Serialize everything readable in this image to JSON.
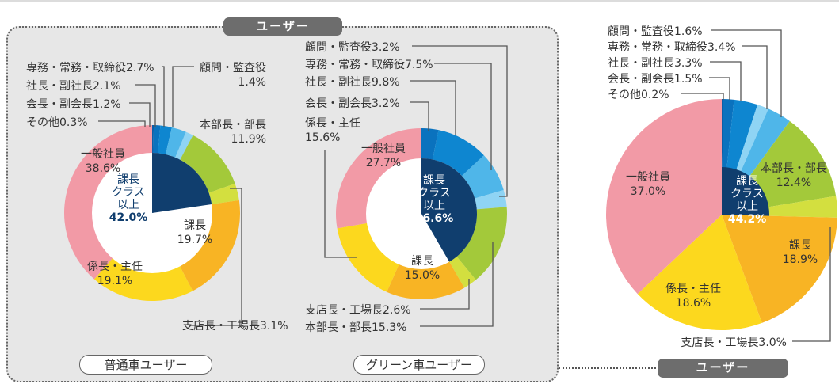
{
  "header": {
    "user_label": "ユーザー"
  },
  "footer": {
    "user_label": "ユーザー"
  },
  "colors": {
    "その他": "#0c5fa8",
    "会長・副会長": "#0a72be",
    "社長・副社長": "#0e86d0",
    "専務・常務・取締役": "#4fb6e9",
    "顧問・監査役": "#8fd4f4",
    "本部長・部長": "#a3c93a",
    "支店長・工場長": "#d3df3f",
    "課長": "#f8b424",
    "係長・主任": "#fcd81e",
    "一般社員": "#f29aa6",
    "center_fill": "#103e6e",
    "line": "#555555"
  },
  "chart_data": [
    {
      "type": "donut",
      "title": "普通車ユーザー",
      "categories": [
        "その他",
        "会長・副会長",
        "社長・副社長",
        "専務・常務・取締役",
        "顧問・監査役",
        "本部長・部長",
        "支店長・工場長",
        "課長",
        "係長・主任",
        "一般社員"
      ],
      "values": [
        0.3,
        1.2,
        2.1,
        2.7,
        1.4,
        11.9,
        3.1,
        19.7,
        19.1,
        38.6
      ],
      "center_label": [
        "課長",
        "クラス",
        "以上",
        "42.0%"
      ],
      "manager_share": 42.0,
      "labels": [
        {
          "lines": [
            "その他0.3%"
          ]
        },
        {
          "lines": [
            "会長・副会長1.2%"
          ]
        },
        {
          "lines": [
            "社長・副社長2.1%"
          ]
        },
        {
          "lines": [
            "専務・常務・取締役2.7%"
          ]
        },
        {
          "lines": [
            "顧問・監査役",
            "1.4%"
          ]
        },
        {
          "lines": [
            "本部長・部長",
            "11.9%"
          ]
        },
        {
          "lines": [
            "支店長・工場長3.1%"
          ]
        },
        {
          "lines": [
            "課長",
            "19.7%"
          ]
        },
        {
          "lines": [
            "係長・主任",
            "19.1%"
          ]
        },
        {
          "lines": [
            "一般社員",
            "38.6%"
          ]
        }
      ]
    },
    {
      "type": "donut",
      "title": "グリーン車ユーザー",
      "categories": [
        "会長・副会長",
        "社長・副社長",
        "専務・常務・取締役",
        "顧問・監査役",
        "本部長・部長",
        "支店長・工場長",
        "課長",
        "係長・主任",
        "一般社員"
      ],
      "values": [
        3.2,
        9.8,
        7.5,
        3.2,
        15.3,
        2.6,
        15.0,
        15.6,
        27.7
      ],
      "center_label": [
        "課長",
        "クラス",
        "以上",
        "56.6%"
      ],
      "manager_share": 56.6,
      "labels": [
        {
          "lines": [
            "会長・副会長3.2%"
          ]
        },
        {
          "lines": [
            "社長・副社長9.8%"
          ]
        },
        {
          "lines": [
            "専務・常務・取締役7.5%"
          ]
        },
        {
          "lines": [
            "顧問・監査役3.2%"
          ]
        },
        {
          "lines": [
            "本部長・部長15.3%"
          ]
        },
        {
          "lines": [
            "支店長・工場長2.6%"
          ]
        },
        {
          "lines": [
            "課長",
            "15.0%"
          ]
        },
        {
          "lines": [
            "係長・主任",
            "15.6%"
          ]
        },
        {
          "lines": [
            "一般社員",
            "27.7%"
          ]
        }
      ]
    },
    {
      "type": "donut",
      "title": "",
      "categories": [
        "その他",
        "会長・副会長",
        "社長・副社長",
        "顧問・監査役",
        "専務・常務・取締役",
        "本部長・部長",
        "支店長・工場長",
        "課長",
        "係長・主任",
        "一般社員"
      ],
      "values": [
        0.2,
        1.5,
        3.3,
        1.6,
        3.4,
        12.4,
        3.0,
        18.9,
        18.6,
        37.0
      ],
      "center_label": [
        "課長",
        "クラス",
        "以上",
        "44.2%"
      ],
      "manager_share": 44.2,
      "labels": [
        {
          "lines": [
            "その他0.2%"
          ]
        },
        {
          "lines": [
            "会長・副会長1.5%"
          ]
        },
        {
          "lines": [
            "社長・副社長3.3%"
          ]
        },
        {
          "lines": [
            "顧問・監査役1.6%"
          ]
        },
        {
          "lines": [
            "専務・常務・取締役3.4%"
          ]
        },
        {
          "lines": [
            "本部長・部長",
            "12.4%"
          ]
        },
        {
          "lines": [
            "支店長・工場長3.0%"
          ]
        },
        {
          "lines": [
            "課長",
            "18.9%"
          ]
        },
        {
          "lines": [
            "係長・主任",
            "18.6%"
          ]
        },
        {
          "lines": [
            "一般社員",
            "37.0%"
          ]
        }
      ]
    }
  ]
}
